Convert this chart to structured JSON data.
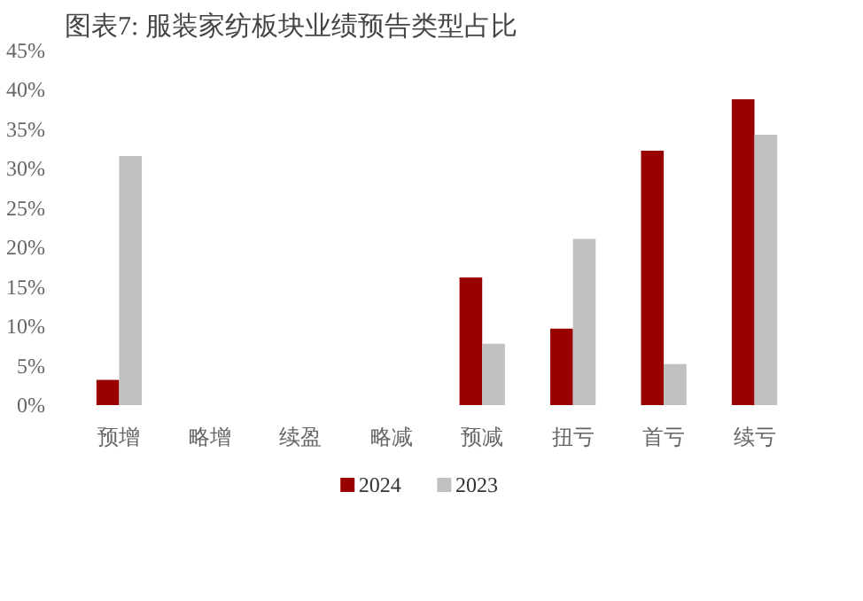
{
  "chart_data": {
    "type": "bar",
    "title": "图表7: 服装家纺板块业绩预告类型占比",
    "categories": [
      "预增",
      "略增",
      "续盈",
      "略减",
      "预减",
      "扭亏",
      "首亏",
      "续亏"
    ],
    "series": [
      {
        "name": "2024",
        "color": "#990000",
        "values": [
          3.2,
          0,
          0,
          0,
          16.2,
          9.7,
          32.3,
          38.8
        ]
      },
      {
        "name": "2023",
        "color": "#c0c0c0",
        "values": [
          31.6,
          0,
          0,
          0,
          7.8,
          21.1,
          5.2,
          34.3
        ]
      }
    ],
    "ylim": [
      0,
      45
    ],
    "yticks": [
      {
        "value": 0,
        "label": "0%"
      },
      {
        "value": 5,
        "label": "5%"
      },
      {
        "value": 10,
        "label": "10%"
      },
      {
        "value": 15,
        "label": "15%"
      },
      {
        "value": 20,
        "label": "20%"
      },
      {
        "value": 25,
        "label": "25%"
      },
      {
        "value": 30,
        "label": "30%"
      },
      {
        "value": 35,
        "label": "35%"
      },
      {
        "value": 40,
        "label": "40%"
      },
      {
        "value": 45,
        "label": "45%"
      }
    ],
    "grid": false,
    "legend": "bottom"
  }
}
